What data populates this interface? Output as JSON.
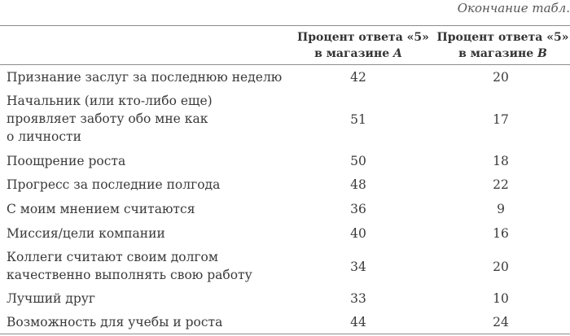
{
  "continuation": "Окончание табл.",
  "columns": {
    "a_line1": "Процент ответа «5»",
    "a_line2_prefix": "в магазине ",
    "a_line2_store": "A",
    "b_line1": "Процент ответа «5»",
    "b_line2_prefix": "в магазине ",
    "b_line2_store": "B"
  },
  "rows": [
    {
      "label": "Признание заслуг за последнюю неделю",
      "a": "42",
      "b": "20"
    },
    {
      "label": "Начальник (или кто-либо еще)\nпроявляет заботу обо мне как\nо личности",
      "a": "51",
      "b": "17"
    },
    {
      "label": "Поощрение роста",
      "a": "50",
      "b": "18"
    },
    {
      "label": "Прогресс за последние полгода",
      "a": "48",
      "b": "22"
    },
    {
      "label": "С моим мнением считаются",
      "a": "36",
      "b": "9"
    },
    {
      "label": "Миссия/цели компании",
      "a": "40",
      "b": "16"
    },
    {
      "label": "Коллеги считают своим долгом\nкачественно выполнять свою работу",
      "a": "34",
      "b": "20"
    },
    {
      "label": "Лучший друг",
      "a": "33",
      "b": "10"
    },
    {
      "label": "Возможность для учебы и роста",
      "a": "44",
      "b": "24"
    }
  ]
}
